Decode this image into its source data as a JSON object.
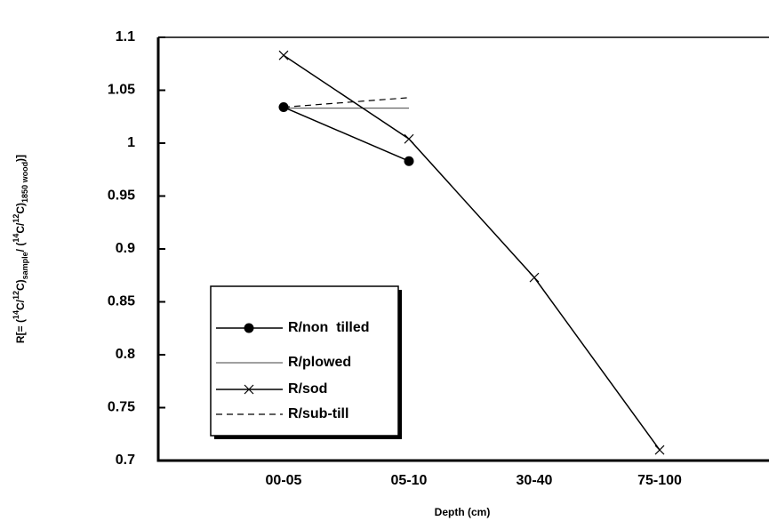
{
  "chart_data": {
    "type": "line",
    "x_label": "Depth (cm)",
    "y_label": [
      {
        "text": "R[= ("
      },
      {
        "text": "14",
        "shift": "super"
      },
      {
        "text": "C/"
      },
      {
        "text": "12",
        "shift": "super"
      },
      {
        "text": "C)"
      },
      {
        "text": "sample",
        "shift": "sub"
      },
      {
        "text": "/ ("
      },
      {
        "text": "14",
        "shift": "super"
      },
      {
        "text": "C/"
      },
      {
        "text": "12",
        "shift": "super"
      },
      {
        "text": "C)"
      },
      {
        "text": "1850 wood",
        "shift": "sub"
      },
      {
        "text": ")]"
      }
    ],
    "categories": [
      "00-05",
      "05-10",
      "30-40",
      "75-100"
    ],
    "series": [
      {
        "name": "R/non  tilled",
        "color": "#000000",
        "marker": "circle",
        "dash": false,
        "width": 1.5,
        "values": [
          1.034,
          0.983,
          null,
          null
        ]
      },
      {
        "name": "R/plowed",
        "color": "#000000",
        "marker": "none",
        "dash": false,
        "width": 0.8,
        "values": [
          1.033,
          1.033,
          null,
          null
        ]
      },
      {
        "name": "R/sod",
        "color": "#000000",
        "marker": "x",
        "dash": false,
        "width": 1.5,
        "values": [
          1.083,
          1.004,
          0.873,
          0.71
        ]
      },
      {
        "name": "R/sub-till",
        "color": "#000000",
        "marker": "none",
        "dash": true,
        "width": 1.2,
        "values": [
          1.034,
          1.043,
          null,
          null
        ]
      }
    ],
    "ylim": [
      0.7,
      1.1
    ],
    "yticks": [
      0.7,
      0.75,
      0.8,
      0.85,
      0.9,
      0.95,
      1,
      1.05,
      1.1
    ],
    "legend": "lower-left"
  }
}
